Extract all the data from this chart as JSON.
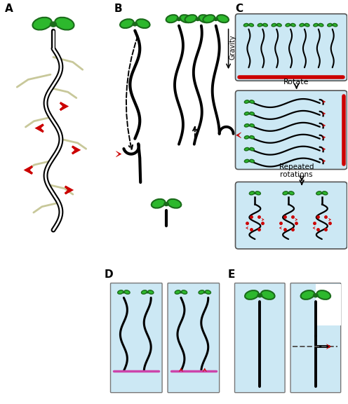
{
  "fig_width": 4.96,
  "fig_height": 5.76,
  "bg_color": "#ffffff",
  "light_blue": "#cce8f4",
  "green": "#2db82d",
  "green_dark": "#1a6b1a",
  "red": "#cc0000",
  "black": "#000000",
  "label_A": "A",
  "label_B": "B",
  "label_C": "C",
  "label_D": "D",
  "label_E": "E",
  "gravity_text": "Gravity",
  "rotate_text": "Rotate",
  "repeated_text": "Repeated\nrotations"
}
